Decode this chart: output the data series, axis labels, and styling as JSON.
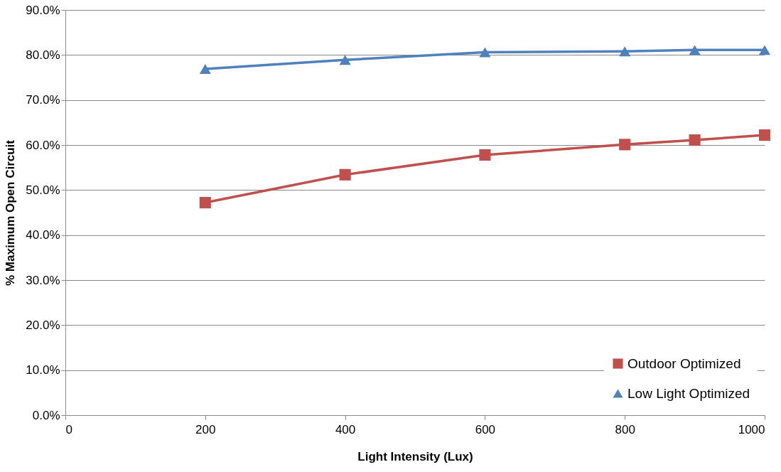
{
  "chart_data": {
    "type": "line",
    "xlabel": "Light Intensity (Lux)",
    "ylabel": "% Maximum Open Circuit",
    "xlim": [
      0,
      1000
    ],
    "xticks": [
      0,
      200,
      400,
      600,
      800,
      1000
    ],
    "ylim": [
      0,
      90
    ],
    "yticks": [
      {
        "value": 0,
        "label": "0.0%"
      },
      {
        "value": 10,
        "label": "10.0%"
      },
      {
        "value": 20,
        "label": "20.0%"
      },
      {
        "value": 30,
        "label": "30.0%"
      },
      {
        "value": 40,
        "label": "40.0%"
      },
      {
        "value": 50,
        "label": "50.0%"
      },
      {
        "value": 60,
        "label": "60.0%"
      },
      {
        "value": 70,
        "label": "70.0%"
      },
      {
        "value": 80,
        "label": "80.0%"
      },
      {
        "value": 90,
        "label": "90.0%"
      }
    ],
    "grid": "y",
    "legend": "bottom right",
    "x": [
      200,
      400,
      600,
      800,
      900,
      1000
    ],
    "series": [
      {
        "name": "Outdoor Optimized",
        "color": "#c0504d",
        "marker": "square",
        "values": [
          47.2,
          53.4,
          57.8,
          60.1,
          61.1,
          62.2
        ]
      },
      {
        "name": "Low Light Optimized",
        "color": "#4f81bd",
        "marker": "triangle",
        "values": [
          76.9,
          78.9,
          80.6,
          80.8,
          81.1,
          81.1
        ]
      }
    ]
  }
}
